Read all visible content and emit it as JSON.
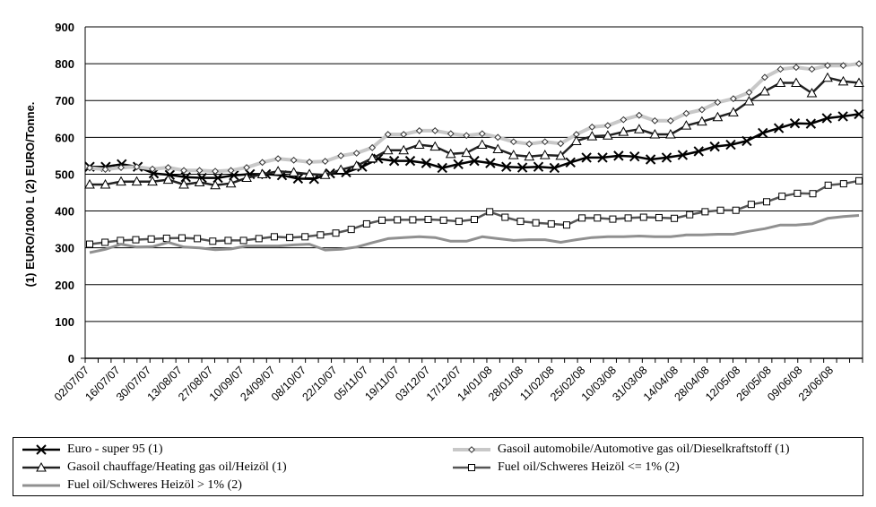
{
  "chart_data": {
    "type": "line",
    "title": "",
    "ylabel": "(1) EURO/1000 L (2) EURO/Tonne.",
    "xlabel": "",
    "ylim": [
      0,
      900
    ],
    "yticks": [
      "0",
      "100",
      "200",
      "300",
      "400",
      "500",
      "600",
      "700",
      "800",
      "900"
    ],
    "grid": true,
    "legend_position": "bottom",
    "x_tick_labels": [
      "02/07/07",
      "16/07/07",
      "30/07/07",
      "13/08/07",
      "27/08/07",
      "10/09/07",
      "24/09/07",
      "08/10/07",
      "22/10/07",
      "05/11/07",
      "19/11/07",
      "03/12/07",
      "17/12/07",
      "14/01/08",
      "28/01/08",
      "11/02/08",
      "25/02/08",
      "10/03/08",
      "31/03/08",
      "14/04/08",
      "28/04/08",
      "12/05/08",
      "26/05/08",
      "09/06/08",
      "23/06/08"
    ],
    "series": [
      {
        "name": "Euro - super 95 (1)",
        "color": "#000000",
        "marker": "x",
        "values": [
          520,
          520,
          527,
          520,
          502,
          498,
          492,
          490,
          490,
          497,
          500,
          500,
          497,
          488,
          487,
          502,
          505,
          520,
          542,
          536,
          536,
          530,
          517,
          527,
          536,
          530,
          520,
          518,
          520,
          517,
          532,
          545,
          545,
          550,
          548,
          540,
          545,
          552,
          562,
          575,
          580,
          590,
          612,
          625,
          638,
          637,
          652,
          657,
          663
        ]
      },
      {
        "name": "Gasoil automobile/Automotive gas oil/Dieselkraftstoff (1)",
        "color": "#c8c8c8",
        "marker": "diamond",
        "values": [
          517,
          513,
          518,
          520,
          514,
          518,
          510,
          510,
          508,
          510,
          518,
          532,
          542,
          538,
          533,
          535,
          550,
          557,
          572,
          608,
          608,
          618,
          618,
          610,
          605,
          610,
          600,
          588,
          582,
          588,
          583,
          608,
          628,
          632,
          648,
          660,
          645,
          645,
          665,
          675,
          695,
          705,
          722,
          763,
          785,
          790,
          785,
          795,
          795,
          800
        ]
      },
      {
        "name": "Gasoil chauffage/Heating gas oil/Heizöl (1)",
        "color": "#222222",
        "marker": "triangle",
        "values": [
          472,
          472,
          480,
          480,
          480,
          485,
          472,
          478,
          470,
          475,
          490,
          500,
          508,
          505,
          500,
          498,
          512,
          523,
          543,
          565,
          565,
          580,
          575,
          555,
          558,
          580,
          568,
          552,
          548,
          552,
          550,
          590,
          603,
          605,
          615,
          622,
          608,
          608,
          632,
          643,
          655,
          668,
          698,
          725,
          748,
          748,
          720,
          762,
          752,
          748
        ]
      },
      {
        "name": "Fuel oil/Schweres Heizöl <= 1% (2)",
        "color": "#555555",
        "marker": "square",
        "values": [
          310,
          315,
          320,
          322,
          324,
          326,
          327,
          325,
          318,
          320,
          320,
          325,
          330,
          328,
          330,
          335,
          340,
          350,
          365,
          375,
          376,
          376,
          377,
          375,
          372,
          377,
          398,
          383,
          372,
          368,
          365,
          362,
          381,
          381,
          378,
          381,
          383,
          382,
          380,
          390,
          398,
          402,
          402,
          418,
          425,
          440,
          448,
          447,
          470,
          474,
          482
        ]
      },
      {
        "name": "Fuel oil/Schweres Heizöl > 1% (2)",
        "color": "#909090",
        "marker": "none",
        "values": [
          287,
          296,
          310,
          302,
          303,
          315,
          302,
          300,
          295,
          297,
          305,
          305,
          305,
          308,
          310,
          294,
          296,
          302,
          314,
          325,
          328,
          330,
          328,
          318,
          318,
          330,
          325,
          320,
          322,
          322,
          315,
          322,
          328,
          330,
          330,
          332,
          330,
          330,
          335,
          335,
          337,
          337,
          345,
          352,
          362,
          362,
          365,
          380,
          385,
          388
        ]
      }
    ]
  }
}
